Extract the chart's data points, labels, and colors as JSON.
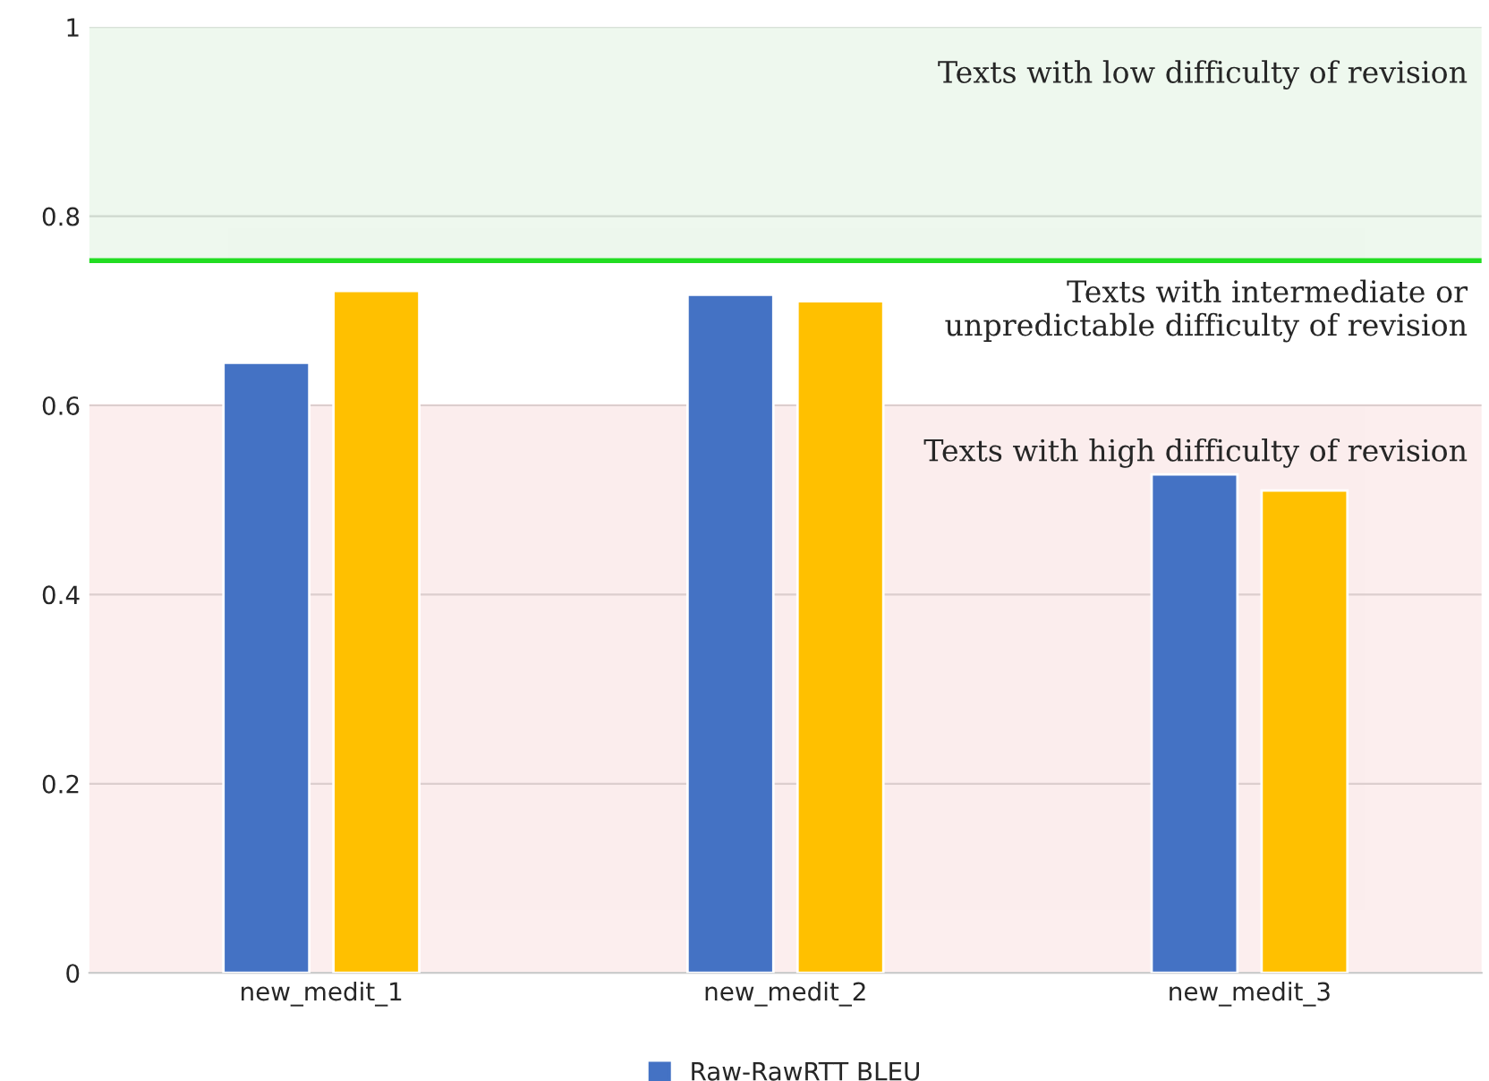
{
  "chart_data": {
    "type": "bar",
    "categories": [
      "new_medit_1",
      "new_medit_2",
      "new_medit_3"
    ],
    "series": [
      {
        "name": "Raw-RawRTT BLEU",
        "color": "#4472c4",
        "values": [
          0.645,
          0.717,
          0.527
        ]
      },
      {
        "color": "#ffc000",
        "values": [
          0.721,
          0.71,
          0.51
        ]
      }
    ],
    "ylim": [
      0,
      1
    ],
    "yticks": [
      0,
      0.2,
      0.4,
      0.6,
      0.8,
      1
    ],
    "grid": "y",
    "legend": "bottom",
    "bands": [
      {
        "axis": "y",
        "from": 0.753,
        "to": 1,
        "label": "Texts with low difficulty of revision",
        "color": "#2ca02c"
      },
      {
        "axis": "y",
        "from": 0,
        "to": 0.6,
        "label": "Texts with high difficulty of revision",
        "color": "#d62728"
      }
    ],
    "ref_lines": [
      {
        "axis": "y",
        "value": 0.753,
        "color": "#22dd22",
        "line_style": "solid"
      }
    ],
    "annotations": [
      "Texts with intermediate or\nunpredictable difficulty of revision"
    ]
  }
}
